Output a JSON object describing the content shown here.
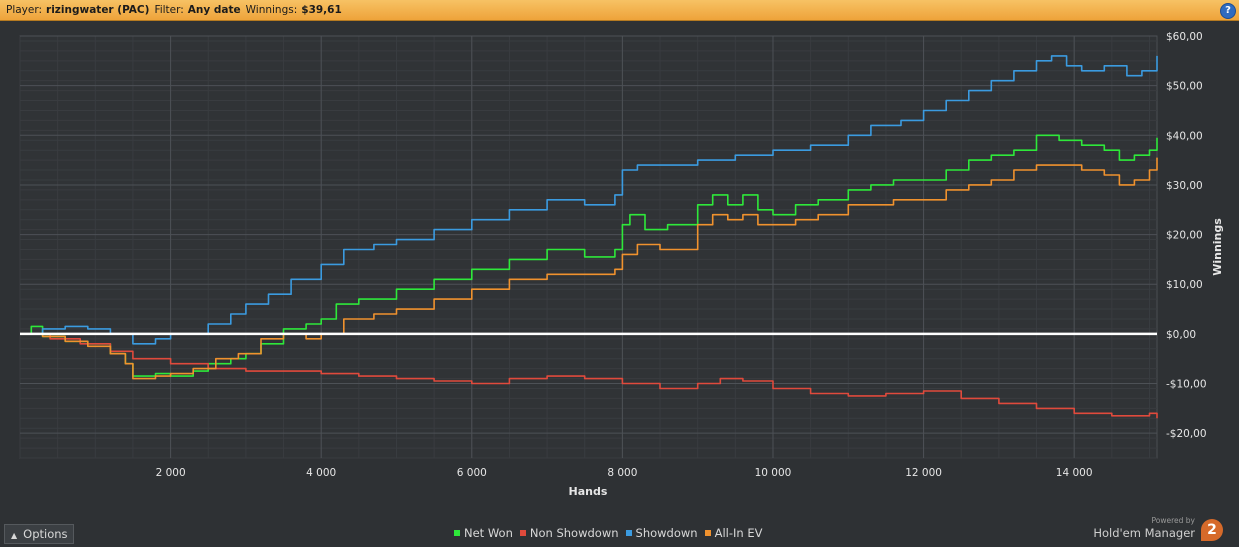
{
  "header": {
    "player_label": "Player:",
    "player_value": "rizingwater (PAC)",
    "filter_label": "Filter:",
    "filter_value": "Any date",
    "winnings_label": "Winnings:",
    "winnings_value": "$39,61",
    "help_text": "?"
  },
  "options_label": "Options",
  "branding": {
    "powered_by": "Powered by",
    "name": "Hold'em Manager"
  },
  "chart_data": {
    "type": "line",
    "xlabel": "Hands",
    "ylabel": "Winnings",
    "xlim": [
      0,
      15100
    ],
    "ylim": [
      -25,
      60
    ],
    "x_ticks": [
      2000,
      4000,
      6000,
      8000,
      10000,
      12000,
      14000
    ],
    "x_tick_labels": [
      "2 000",
      "4 000",
      "6 000",
      "8 000",
      "10 000",
      "12 000",
      "14 000"
    ],
    "y_ticks": [
      60,
      50,
      40,
      30,
      20,
      10,
      0,
      -10,
      -20
    ],
    "y_tick_labels": [
      "$60,00",
      "$50,00",
      "$40,00",
      "$30,00",
      "$20,00",
      "$10,00",
      "$0,00",
      "-$10,00",
      "-$20,00"
    ],
    "grid": true,
    "legend_position": "bottom",
    "zero_line_color": "#ffffff",
    "series": [
      {
        "name": "Net Won",
        "color": "#2ee83a",
        "points": [
          [
            0,
            0
          ],
          [
            150,
            1.5
          ],
          [
            300,
            -0.5
          ],
          [
            600,
            -1.5
          ],
          [
            900,
            -2
          ],
          [
            1200,
            -4
          ],
          [
            1400,
            -6
          ],
          [
            1500,
            -8.5
          ],
          [
            1800,
            -8
          ],
          [
            2000,
            -8.5
          ],
          [
            2300,
            -7.5
          ],
          [
            2500,
            -6
          ],
          [
            2800,
            -5
          ],
          [
            3000,
            -4
          ],
          [
            3200,
            -2
          ],
          [
            3500,
            1
          ],
          [
            3800,
            2
          ],
          [
            4000,
            3
          ],
          [
            4200,
            6
          ],
          [
            4500,
            7
          ],
          [
            5000,
            9
          ],
          [
            5500,
            11
          ],
          [
            6000,
            13
          ],
          [
            6500,
            15
          ],
          [
            7000,
            17
          ],
          [
            7500,
            15.5
          ],
          [
            7900,
            17
          ],
          [
            8000,
            22
          ],
          [
            8100,
            24
          ],
          [
            8300,
            21
          ],
          [
            8600,
            22
          ],
          [
            9000,
            26
          ],
          [
            9200,
            28
          ],
          [
            9400,
            26
          ],
          [
            9600,
            28
          ],
          [
            9800,
            25
          ],
          [
            10000,
            24
          ],
          [
            10300,
            26
          ],
          [
            10600,
            27
          ],
          [
            11000,
            29
          ],
          [
            11300,
            30
          ],
          [
            11600,
            31
          ],
          [
            12000,
            31
          ],
          [
            12300,
            33
          ],
          [
            12600,
            35
          ],
          [
            12900,
            36
          ],
          [
            13200,
            37
          ],
          [
            13500,
            40
          ],
          [
            13800,
            39
          ],
          [
            14100,
            38
          ],
          [
            14400,
            37
          ],
          [
            14600,
            35
          ],
          [
            14800,
            36
          ],
          [
            15000,
            37
          ],
          [
            15100,
            39.5
          ]
        ]
      },
      {
        "name": "Non Showdown",
        "color": "#e04a3c",
        "points": [
          [
            0,
            0
          ],
          [
            400,
            -1
          ],
          [
            800,
            -2
          ],
          [
            1200,
            -3.5
          ],
          [
            1500,
            -5
          ],
          [
            2000,
            -6
          ],
          [
            2500,
            -7
          ],
          [
            3000,
            -7.5
          ],
          [
            3500,
            -7.5
          ],
          [
            4000,
            -8
          ],
          [
            4500,
            -8.5
          ],
          [
            5000,
            -9
          ],
          [
            5500,
            -9.5
          ],
          [
            6000,
            -10
          ],
          [
            6500,
            -9
          ],
          [
            7000,
            -8.5
          ],
          [
            7500,
            -9
          ],
          [
            8000,
            -10
          ],
          [
            8500,
            -11
          ],
          [
            9000,
            -10
          ],
          [
            9300,
            -9
          ],
          [
            9600,
            -9.5
          ],
          [
            10000,
            -11
          ],
          [
            10500,
            -12
          ],
          [
            11000,
            -12.5
          ],
          [
            11500,
            -12
          ],
          [
            12000,
            -11.5
          ],
          [
            12500,
            -13
          ],
          [
            13000,
            -14
          ],
          [
            13500,
            -15
          ],
          [
            14000,
            -16
          ],
          [
            14500,
            -16.5
          ],
          [
            15000,
            -16
          ],
          [
            15100,
            -17
          ]
        ]
      },
      {
        "name": "Showdown",
        "color": "#3b9be0",
        "points": [
          [
            0,
            0
          ],
          [
            300,
            1
          ],
          [
            600,
            1.5
          ],
          [
            900,
            1
          ],
          [
            1200,
            0
          ],
          [
            1500,
            -2
          ],
          [
            1800,
            -1
          ],
          [
            2000,
            0
          ],
          [
            2200,
            0
          ],
          [
            2500,
            2
          ],
          [
            2800,
            4
          ],
          [
            3000,
            6
          ],
          [
            3300,
            8
          ],
          [
            3600,
            11
          ],
          [
            4000,
            14
          ],
          [
            4300,
            17
          ],
          [
            4700,
            18
          ],
          [
            5000,
            19
          ],
          [
            5500,
            21
          ],
          [
            6000,
            23
          ],
          [
            6500,
            25
          ],
          [
            7000,
            27
          ],
          [
            7500,
            26
          ],
          [
            7900,
            28
          ],
          [
            8000,
            33
          ],
          [
            8200,
            34
          ],
          [
            8500,
            34
          ],
          [
            9000,
            35
          ],
          [
            9500,
            36
          ],
          [
            10000,
            37
          ],
          [
            10500,
            38
          ],
          [
            11000,
            40
          ],
          [
            11300,
            42
          ],
          [
            11700,
            43
          ],
          [
            12000,
            45
          ],
          [
            12300,
            47
          ],
          [
            12600,
            49
          ],
          [
            12900,
            51
          ],
          [
            13200,
            53
          ],
          [
            13500,
            55
          ],
          [
            13700,
            56
          ],
          [
            13900,
            54
          ],
          [
            14100,
            53
          ],
          [
            14400,
            54
          ],
          [
            14700,
            52
          ],
          [
            14900,
            53
          ],
          [
            15100,
            56
          ]
        ]
      },
      {
        "name": "All-In EV",
        "color": "#f0922e",
        "points": [
          [
            0,
            0
          ],
          [
            300,
            -0.5
          ],
          [
            600,
            -1.5
          ],
          [
            900,
            -2.5
          ],
          [
            1200,
            -4
          ],
          [
            1400,
            -6
          ],
          [
            1500,
            -9
          ],
          [
            1800,
            -8.5
          ],
          [
            2000,
            -8
          ],
          [
            2300,
            -7
          ],
          [
            2600,
            -5
          ],
          [
            2900,
            -4
          ],
          [
            3200,
            -1
          ],
          [
            3500,
            0
          ],
          [
            3800,
            -1
          ],
          [
            4000,
            0
          ],
          [
            4300,
            3
          ],
          [
            4700,
            4
          ],
          [
            5000,
            5
          ],
          [
            5500,
            7
          ],
          [
            6000,
            9
          ],
          [
            6500,
            11
          ],
          [
            7000,
            12
          ],
          [
            7500,
            12
          ],
          [
            7900,
            13
          ],
          [
            8000,
            16
          ],
          [
            8200,
            18
          ],
          [
            8500,
            17
          ],
          [
            9000,
            22
          ],
          [
            9200,
            24
          ],
          [
            9400,
            23
          ],
          [
            9600,
            24
          ],
          [
            9800,
            22
          ],
          [
            10000,
            22
          ],
          [
            10300,
            23
          ],
          [
            10600,
            24
          ],
          [
            11000,
            26
          ],
          [
            11300,
            26
          ],
          [
            11600,
            27
          ],
          [
            12000,
            27
          ],
          [
            12300,
            29
          ],
          [
            12600,
            30
          ],
          [
            12900,
            31
          ],
          [
            13200,
            33
          ],
          [
            13500,
            34
          ],
          [
            13800,
            34
          ],
          [
            14100,
            33
          ],
          [
            14400,
            32
          ],
          [
            14600,
            30
          ],
          [
            14800,
            31
          ],
          [
            15000,
            33
          ],
          [
            15100,
            35.5
          ]
        ]
      }
    ]
  }
}
